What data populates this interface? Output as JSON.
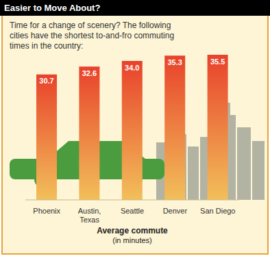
{
  "chart_data": {
    "type": "bar",
    "title": "Easier to Move About?",
    "subtitle": "Time for a change of scenery? The following cities have the shortest to-and-fro commuting times in the country:",
    "categories": [
      "Phoenix",
      "Austin, Texas",
      "Seattle",
      "Denver",
      "San Diego"
    ],
    "values": [
      30.7,
      32.6,
      34.0,
      35.3,
      35.5
    ],
    "value_labels": [
      "30.7",
      "32.6",
      "34.0",
      "35.3",
      "35.5"
    ],
    "data_labels": true,
    "color": "#e8422b",
    "ylim": [
      0,
      35.5
    ],
    "tick_labels": "x",
    "xlabel": "Average commute\n(in minutes)"
  }
}
